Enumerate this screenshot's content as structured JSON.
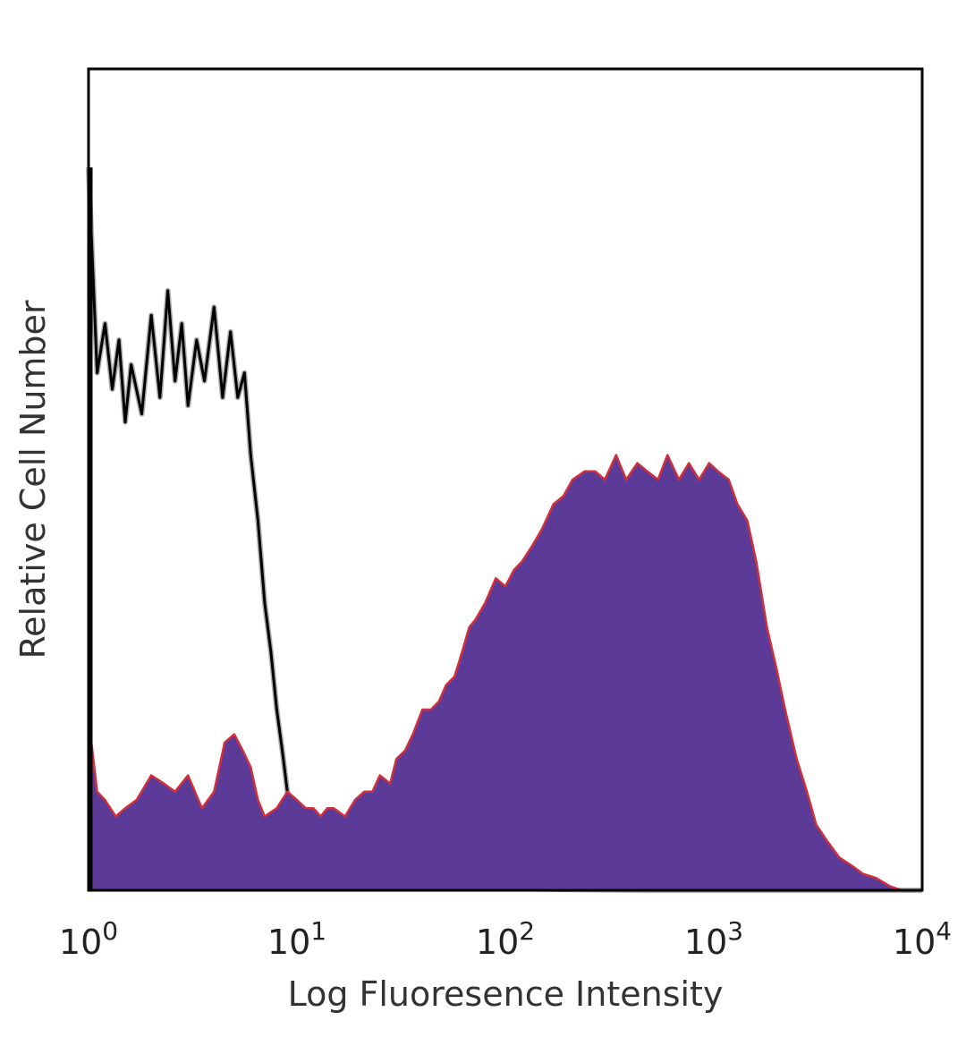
{
  "chart_data": {
    "type": "area",
    "title": "",
    "xlabel": "Log Fluoresence Intensity",
    "ylabel": "Relative Cell Number",
    "xscale": "log",
    "xlim": [
      1,
      10000
    ],
    "ylim": [
      0,
      100
    ],
    "grid": false,
    "legend": "none",
    "x_ticks": [
      {
        "value": 1,
        "base": "10",
        "exp": "0"
      },
      {
        "value": 10,
        "base": "10",
        "exp": "1"
      },
      {
        "value": 100,
        "base": "10",
        "exp": "2"
      },
      {
        "value": 1000,
        "base": "10",
        "exp": "3"
      },
      {
        "value": 10000,
        "base": "10",
        "exp": "4"
      }
    ],
    "colors": {
      "stained_fill": "#5b3a98",
      "stained_edge": "#d0303c",
      "control_line": "#000000",
      "control_shadow": "#777777",
      "frame": "#000000"
    },
    "series": [
      {
        "role": "control",
        "style": "line",
        "x": [
          1.0,
          1.1,
          1.2,
          1.3,
          1.4,
          1.5,
          1.6,
          1.8,
          2.0,
          2.2,
          2.4,
          2.6,
          2.8,
          3.0,
          3.3,
          3.6,
          4.0,
          4.4,
          4.8,
          5.2,
          5.6,
          6.0,
          6.5,
          7.0,
          7.5,
          8.0,
          8.5,
          9.0,
          9.5,
          10,
          11,
          12,
          13,
          14,
          15,
          17,
          19,
          22,
          25,
          30,
          40,
          60,
          90,
          100,
          110,
          200,
          500,
          1000,
          5000,
          10000
        ],
        "y": [
          88,
          63,
          69,
          61,
          67,
          57,
          64,
          58,
          70,
          60,
          73,
          62,
          69,
          59,
          67,
          62,
          71,
          60,
          68,
          60,
          63,
          53,
          45,
          35,
          29,
          22,
          17,
          12,
          9,
          8,
          6,
          4,
          3,
          2,
          1.5,
          1,
          1,
          1,
          1,
          0.5,
          0.3,
          0.2,
          0.2,
          2.5,
          0.2,
          0.1,
          0,
          0,
          0,
          0
        ]
      },
      {
        "role": "stained",
        "style": "filled",
        "x": [
          1.0,
          1.1,
          1.2,
          1.35,
          1.5,
          1.7,
          2.0,
          2.3,
          2.6,
          3.0,
          3.5,
          4.0,
          4.5,
          5.0,
          5.5,
          6.0,
          6.5,
          7.0,
          8.0,
          9.0,
          10,
          11,
          12,
          13,
          14,
          15,
          17,
          19,
          21,
          23,
          25,
          28,
          30,
          33,
          36,
          40,
          44,
          48,
          52,
          57,
          62,
          67,
          72,
          80,
          90,
          100,
          110,
          120,
          135,
          150,
          170,
          190,
          210,
          240,
          270,
          300,
          340,
          380,
          430,
          480,
          540,
          600,
          680,
          760,
          850,
          950,
          1050,
          1180,
          1300,
          1450,
          1600,
          1800,
          2000,
          2200,
          2500,
          2800,
          3100,
          3500,
          4000,
          4600,
          5200,
          6000,
          6500,
          7000,
          8000,
          10000
        ],
        "y": [
          21,
          12,
          11,
          9,
          10,
          11,
          14,
          13,
          12,
          14,
          10,
          12,
          18,
          19,
          17,
          15,
          11,
          9,
          10,
          12,
          11,
          10,
          10,
          9,
          10,
          10,
          9,
          11,
          12,
          12,
          14,
          13,
          16,
          17,
          19,
          22,
          22,
          23,
          25,
          26,
          29,
          32,
          33,
          35,
          38,
          37,
          39,
          40,
          42,
          44,
          47,
          48,
          50,
          51,
          51,
          50,
          53,
          50,
          52,
          51,
          50,
          53,
          50,
          52,
          50,
          52,
          51,
          50,
          47,
          45,
          40,
          32,
          27,
          22,
          16,
          12,
          8,
          6,
          4,
          3,
          2,
          1.5,
          1,
          0.5,
          0,
          0
        ]
      }
    ]
  }
}
